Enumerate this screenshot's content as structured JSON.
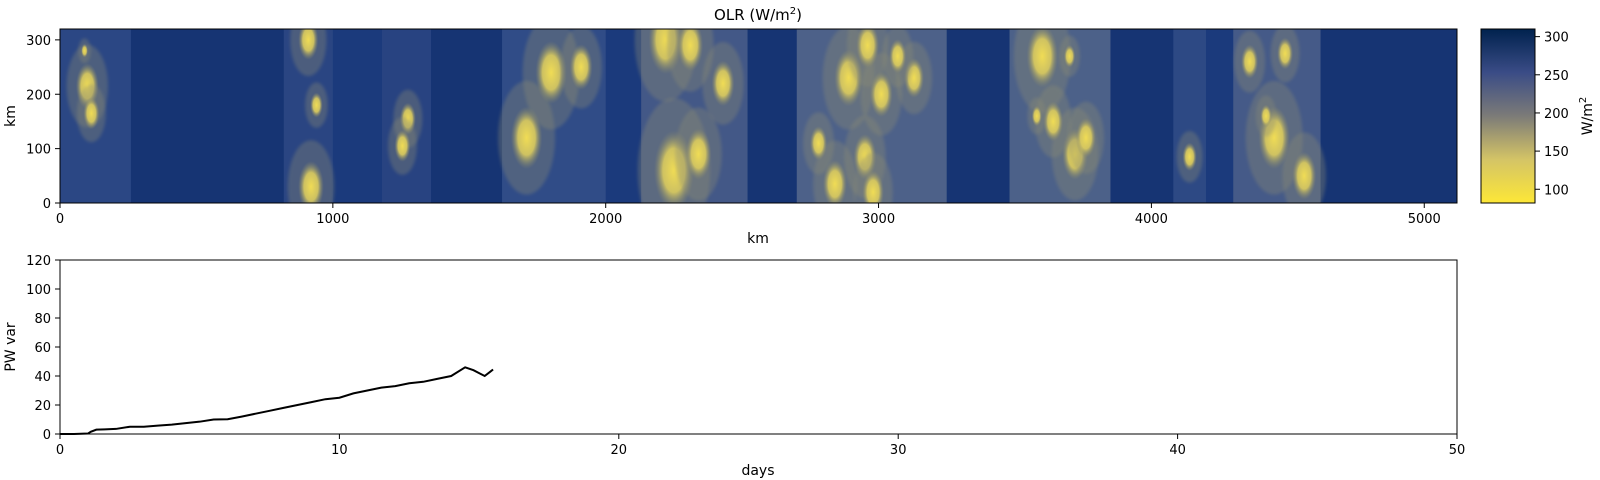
{
  "colors": {
    "cmap_low": "#fde737",
    "cmap_mid": "#7c7b78",
    "cmap_high": "#00224e",
    "line": "#000000",
    "axes": "#000000"
  },
  "chart_data": [
    {
      "type": "heatmap",
      "title_main": "OLR (W/m",
      "title_sup": "2",
      "title_tail": ")",
      "xlabel": "km",
      "ylabel": "km",
      "xlim": [
        0,
        5120
      ],
      "ylim": [
        0,
        320
      ],
      "xticks": [
        0,
        1000,
        2000,
        3000,
        4000,
        5000
      ],
      "yticks": [
        0,
        100,
        200,
        300
      ],
      "colormap": "cividis (reversed)",
      "colorbar": {
        "label_main": "W/m",
        "label_sup": "2",
        "range": [
          82,
          310
        ],
        "ticks": [
          100,
          150,
          200,
          250,
          300
        ]
      },
      "convective_cells": [
        {
          "x": 100,
          "y": 215,
          "r": 40
        },
        {
          "x": 115,
          "y": 165,
          "r": 28
        },
        {
          "x": 90,
          "y": 280,
          "r": 12
        },
        {
          "x": 940,
          "y": 180,
          "r": 22
        },
        {
          "x": 920,
          "y": 30,
          "r": 45
        },
        {
          "x": 910,
          "y": 300,
          "r": 35
        },
        {
          "x": 1275,
          "y": 155,
          "r": 28
        },
        {
          "x": 1255,
          "y": 105,
          "r": 28
        },
        {
          "x": 1710,
          "y": 120,
          "r": 55
        },
        {
          "x": 1800,
          "y": 240,
          "r": 55
        },
        {
          "x": 1910,
          "y": 250,
          "r": 40
        },
        {
          "x": 2220,
          "y": 300,
          "r": 60
        },
        {
          "x": 2310,
          "y": 290,
          "r": 45
        },
        {
          "x": 2250,
          "y": 60,
          "r": 70
        },
        {
          "x": 2340,
          "y": 90,
          "r": 45
        },
        {
          "x": 2430,
          "y": 220,
          "r": 40
        },
        {
          "x": 2840,
          "y": 35,
          "r": 42
        },
        {
          "x": 2950,
          "y": 85,
          "r": 40
        },
        {
          "x": 2890,
          "y": 230,
          "r": 50
        },
        {
          "x": 3010,
          "y": 200,
          "r": 40
        },
        {
          "x": 3130,
          "y": 230,
          "r": 35
        },
        {
          "x": 2980,
          "y": 20,
          "r": 38
        },
        {
          "x": 2960,
          "y": 290,
          "r": 40
        },
        {
          "x": 3070,
          "y": 270,
          "r": 30
        },
        {
          "x": 2780,
          "y": 110,
          "r": 30
        },
        {
          "x": 3600,
          "y": 270,
          "r": 55
        },
        {
          "x": 3720,
          "y": 90,
          "r": 45
        },
        {
          "x": 3640,
          "y": 150,
          "r": 35
        },
        {
          "x": 3580,
          "y": 160,
          "r": 18
        },
        {
          "x": 3760,
          "y": 120,
          "r": 35
        },
        {
          "x": 3700,
          "y": 270,
          "r": 20
        },
        {
          "x": 4360,
          "y": 260,
          "r": 30
        },
        {
          "x": 4450,
          "y": 120,
          "r": 55
        },
        {
          "x": 4560,
          "y": 50,
          "r": 42
        },
        {
          "x": 4420,
          "y": 160,
          "r": 20
        },
        {
          "x": 4490,
          "y": 275,
          "r": 28
        },
        {
          "x": 4140,
          "y": 85,
          "r": 25
        }
      ]
    },
    {
      "type": "line",
      "title": "",
      "xlabel": "days",
      "ylabel": "PW var",
      "xlim": [
        0,
        50
      ],
      "ylim": [
        0,
        120
      ],
      "xticks": [
        0,
        10,
        20,
        30,
        40,
        50
      ],
      "yticks": [
        0,
        20,
        40,
        60,
        80,
        100,
        120
      ],
      "series": [
        {
          "x": [
            0,
            0.5,
            1.0,
            1.1,
            1.3,
            1.6,
            2.0,
            2.5,
            3.0,
            3.5,
            4.0,
            4.5,
            5.0,
            5.5,
            6.0,
            6.5,
            7.0,
            7.5,
            8.0,
            8.5,
            9.0,
            9.5,
            10.0,
            10.5,
            11.0,
            11.5,
            12.0,
            12.5,
            13.0,
            13.5,
            14.0,
            14.5,
            14.8,
            15.0,
            15.2,
            15.4,
            15.5
          ],
          "y": [
            0,
            0,
            0.3,
            1.5,
            3.0,
            3.2,
            3.5,
            5.0,
            5.0,
            5.8,
            6.5,
            7.5,
            8.5,
            10.0,
            10.2,
            12.0,
            14.0,
            16.0,
            18.0,
            20.0,
            22.0,
            24.0,
            25.0,
            28.0,
            30.0,
            32.0,
            33.0,
            35.0,
            36.0,
            38.0,
            40.0,
            46.0,
            44.0,
            42.0,
            40.0,
            43.0,
            44.5
          ]
        }
      ]
    }
  ]
}
